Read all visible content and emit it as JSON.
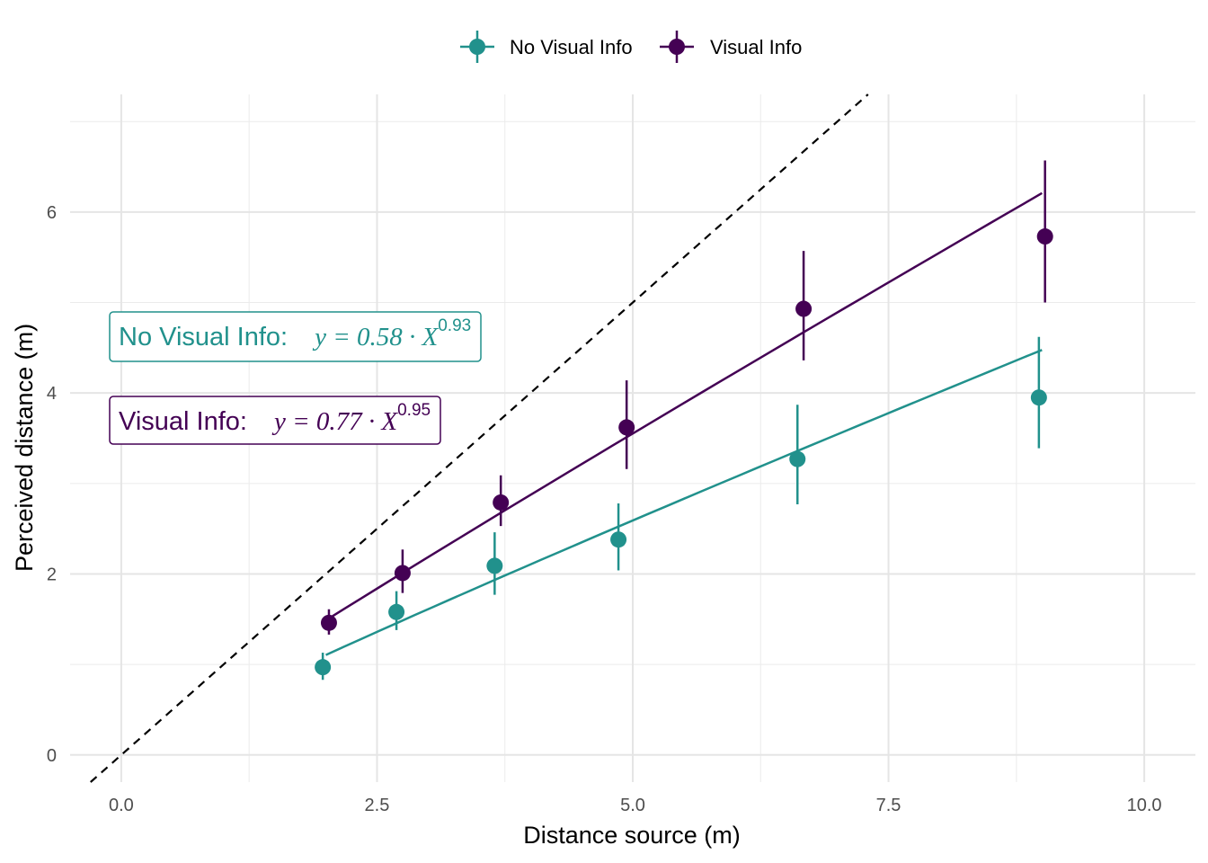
{
  "chart_data": {
    "type": "scatter",
    "title": "",
    "xlabel": "Distance source (m)",
    "ylabel": "Perceived distance (m)",
    "xlim": [
      -0.5,
      10.5
    ],
    "ylim": [
      -0.3,
      7.3
    ],
    "x_ticks": [
      0.0,
      2.5,
      5.0,
      7.5,
      10.0
    ],
    "x_tick_labels": [
      "0.0",
      "2.5",
      "5.0",
      "7.5",
      "10.0"
    ],
    "y_ticks": [
      0,
      2,
      4,
      6
    ],
    "y_tick_labels": [
      "0",
      "2",
      "4",
      "6"
    ],
    "grid": true,
    "legend_position": "top",
    "reference_line": {
      "type": "identity",
      "style": "dashed",
      "color": "#000000"
    },
    "series": [
      {
        "name": "No Visual Info",
        "color": "#21918c",
        "points": [
          {
            "x": 1.97,
            "y": 0.97,
            "ymin": 0.83,
            "ymax": 1.13
          },
          {
            "x": 2.69,
            "y": 1.58,
            "ymin": 1.38,
            "ymax": 1.81
          },
          {
            "x": 3.65,
            "y": 2.09,
            "ymin": 1.77,
            "ymax": 2.46
          },
          {
            "x": 4.86,
            "y": 2.38,
            "ymin": 2.04,
            "ymax": 2.78
          },
          {
            "x": 6.61,
            "y": 3.27,
            "ymin": 2.77,
            "ymax": 3.87
          },
          {
            "x": 8.97,
            "y": 3.95,
            "ymin": 3.39,
            "ymax": 4.62
          }
        ],
        "fit": {
          "a": 0.58,
          "b": 0.93,
          "x_range": [
            2.0,
            9.0
          ]
        }
      },
      {
        "name": "Visual Info",
        "color": "#440154",
        "points": [
          {
            "x": 2.03,
            "y": 1.46,
            "ymin": 1.33,
            "ymax": 1.61
          },
          {
            "x": 2.75,
            "y": 2.01,
            "ymin": 1.79,
            "ymax": 2.27
          },
          {
            "x": 3.71,
            "y": 2.79,
            "ymin": 2.53,
            "ymax": 3.09
          },
          {
            "x": 4.94,
            "y": 3.62,
            "ymin": 3.16,
            "ymax": 4.14
          },
          {
            "x": 6.67,
            "y": 4.93,
            "ymin": 4.36,
            "ymax": 5.57
          },
          {
            "x": 9.03,
            "y": 5.73,
            "ymin": 5.0,
            "ymax": 6.57
          }
        ],
        "fit": {
          "a": 0.77,
          "b": 0.95,
          "x_range": [
            2.0,
            9.0
          ]
        }
      }
    ],
    "annotations": [
      {
        "label": "No Visual Info:",
        "equation": "y = 0.58 · X",
        "exponent": "0.93",
        "color": "#21918c"
      },
      {
        "label": "Visual Info:",
        "equation": "y = 0.77 · X",
        "exponent": "0.95",
        "color": "#440154"
      }
    ]
  }
}
